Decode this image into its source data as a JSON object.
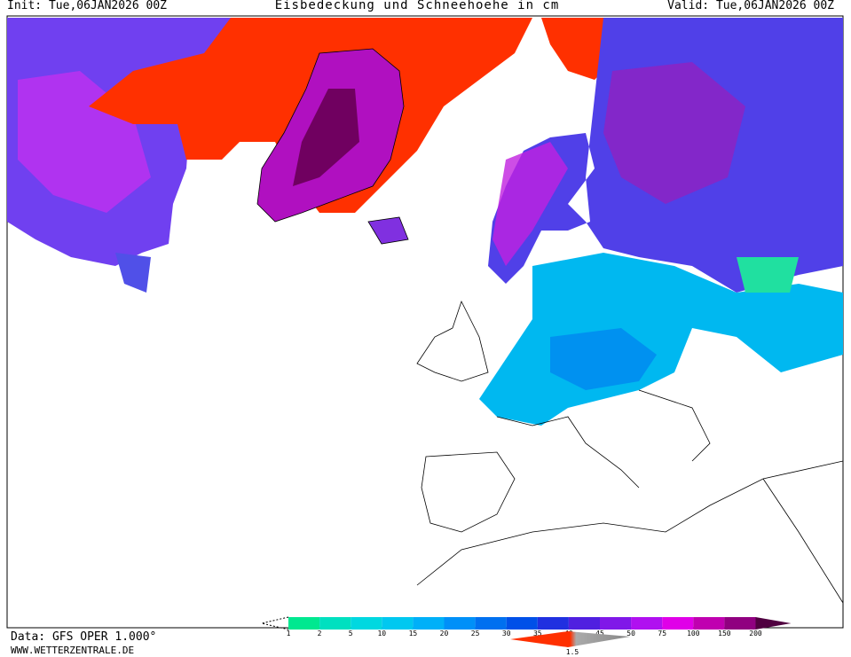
{
  "header": {
    "init": "Init: Tue,06JAN2026 00Z",
    "title": "Eisbedeckung und Schneehoehe in cm",
    "valid": "Valid: Tue,06JAN2026 00Z"
  },
  "footer": {
    "data": "Data: GFS OPER 1.000°",
    "site": "WWW.WETTERZENTRALE.DE"
  },
  "legend": {
    "levels": [
      1,
      2,
      5,
      10,
      15,
      20,
      25,
      30,
      35,
      40,
      45,
      50,
      75,
      100,
      150,
      200
    ],
    "colors": [
      "#00e890",
      "#00e0c0",
      "#00d8e0",
      "#00c8f0",
      "#00b0f8",
      "#0090f8",
      "#0070f0",
      "#0050e8",
      "#2030e0",
      "#5020e0",
      "#8018e8",
      "#b010f0",
      "#e000e8",
      "#c000b0",
      "#900080"
    ],
    "end_color": "#500040",
    "ice_label": "1.5",
    "ice_color": "#ff3000"
  }
}
